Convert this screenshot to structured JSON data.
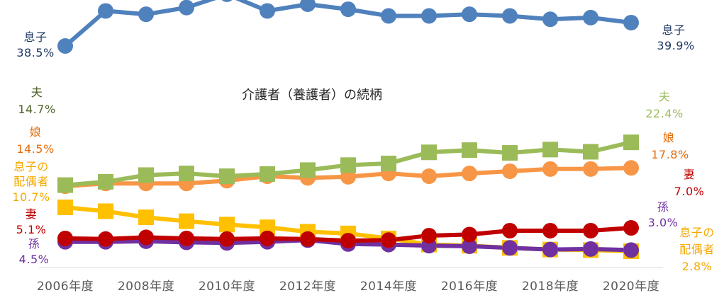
{
  "chart_data": {
    "type": "line",
    "title": "介護者（養護者）の続柄",
    "xlabel": "",
    "ylabel": "",
    "x": [
      "2006年度",
      "2007年度",
      "2008年度",
      "2009年度",
      "2010年度",
      "2011年度",
      "2012年度",
      "2013年度",
      "2014年度",
      "2015年度",
      "2016年度",
      "2017年度",
      "2018年度",
      "2019年度",
      "2020年度"
    ],
    "x_tick_labels": [
      "2006年度",
      "2008年度",
      "2010年度",
      "2012年度",
      "2014年度",
      "2016年度",
      "2018年度",
      "2020年度"
    ],
    "grid": false,
    "legend": "none (series labels at both line ends)",
    "series": [
      {
        "name": "息子",
        "color": "#4F81BD",
        "marker": "circle",
        "values": [
          38.5,
          40.6,
          40.4,
          40.8,
          41.6,
          40.6,
          41.0,
          40.7,
          40.3,
          40.3,
          40.4,
          40.3,
          40.1,
          40.2,
          39.9
        ],
        "start_label": "38.5%",
        "end_label": "39.9%"
      },
      {
        "name": "夫",
        "color": "#9BBB59",
        "marker": "square",
        "values": [
          14.7,
          15.3,
          16.5,
          16.8,
          16.3,
          16.7,
          17.4,
          18.3,
          18.6,
          20.6,
          21.0,
          20.5,
          21.1,
          20.7,
          22.4
        ],
        "start_label": "14.7%",
        "end_label": "22.4%"
      },
      {
        "name": "娘",
        "color": "#F79646",
        "marker": "circle",
        "values": [
          14.5,
          15.0,
          15.0,
          15.0,
          15.5,
          16.3,
          16.0,
          16.2,
          16.8,
          16.3,
          16.8,
          17.2,
          17.6,
          17.6,
          17.8
        ],
        "start_label": "14.5%",
        "end_label": "17.8%"
      },
      {
        "name": "息子の配偶者",
        "color": "#FFC000",
        "marker": "square",
        "values": [
          10.7,
          10.0,
          8.9,
          8.2,
          7.6,
          7.1,
          6.3,
          6.0,
          5.1,
          4.0,
          3.8,
          3.4,
          3.1,
          3.0,
          2.8
        ],
        "start_label": "10.7%",
        "end_label": "2.8%"
      },
      {
        "name": "妻",
        "color": "#C00000",
        "marker": "circle",
        "values": [
          5.1,
          5.0,
          5.3,
          5.1,
          5.0,
          5.1,
          5.0,
          4.7,
          4.8,
          5.6,
          5.8,
          6.5,
          6.5,
          6.5,
          7.0
        ],
        "start_label": "5.1%",
        "end_label": "7.0%"
      },
      {
        "name": "孫",
        "color": "#7030A0",
        "marker": "circle",
        "values": [
          4.5,
          4.5,
          4.6,
          4.4,
          4.3,
          4.5,
          4.8,
          4.1,
          4.0,
          3.8,
          3.7,
          3.4,
          3.1,
          3.2,
          3.0
        ],
        "start_label": "4.5%",
        "end_label": "3.0%"
      }
    ]
  }
}
